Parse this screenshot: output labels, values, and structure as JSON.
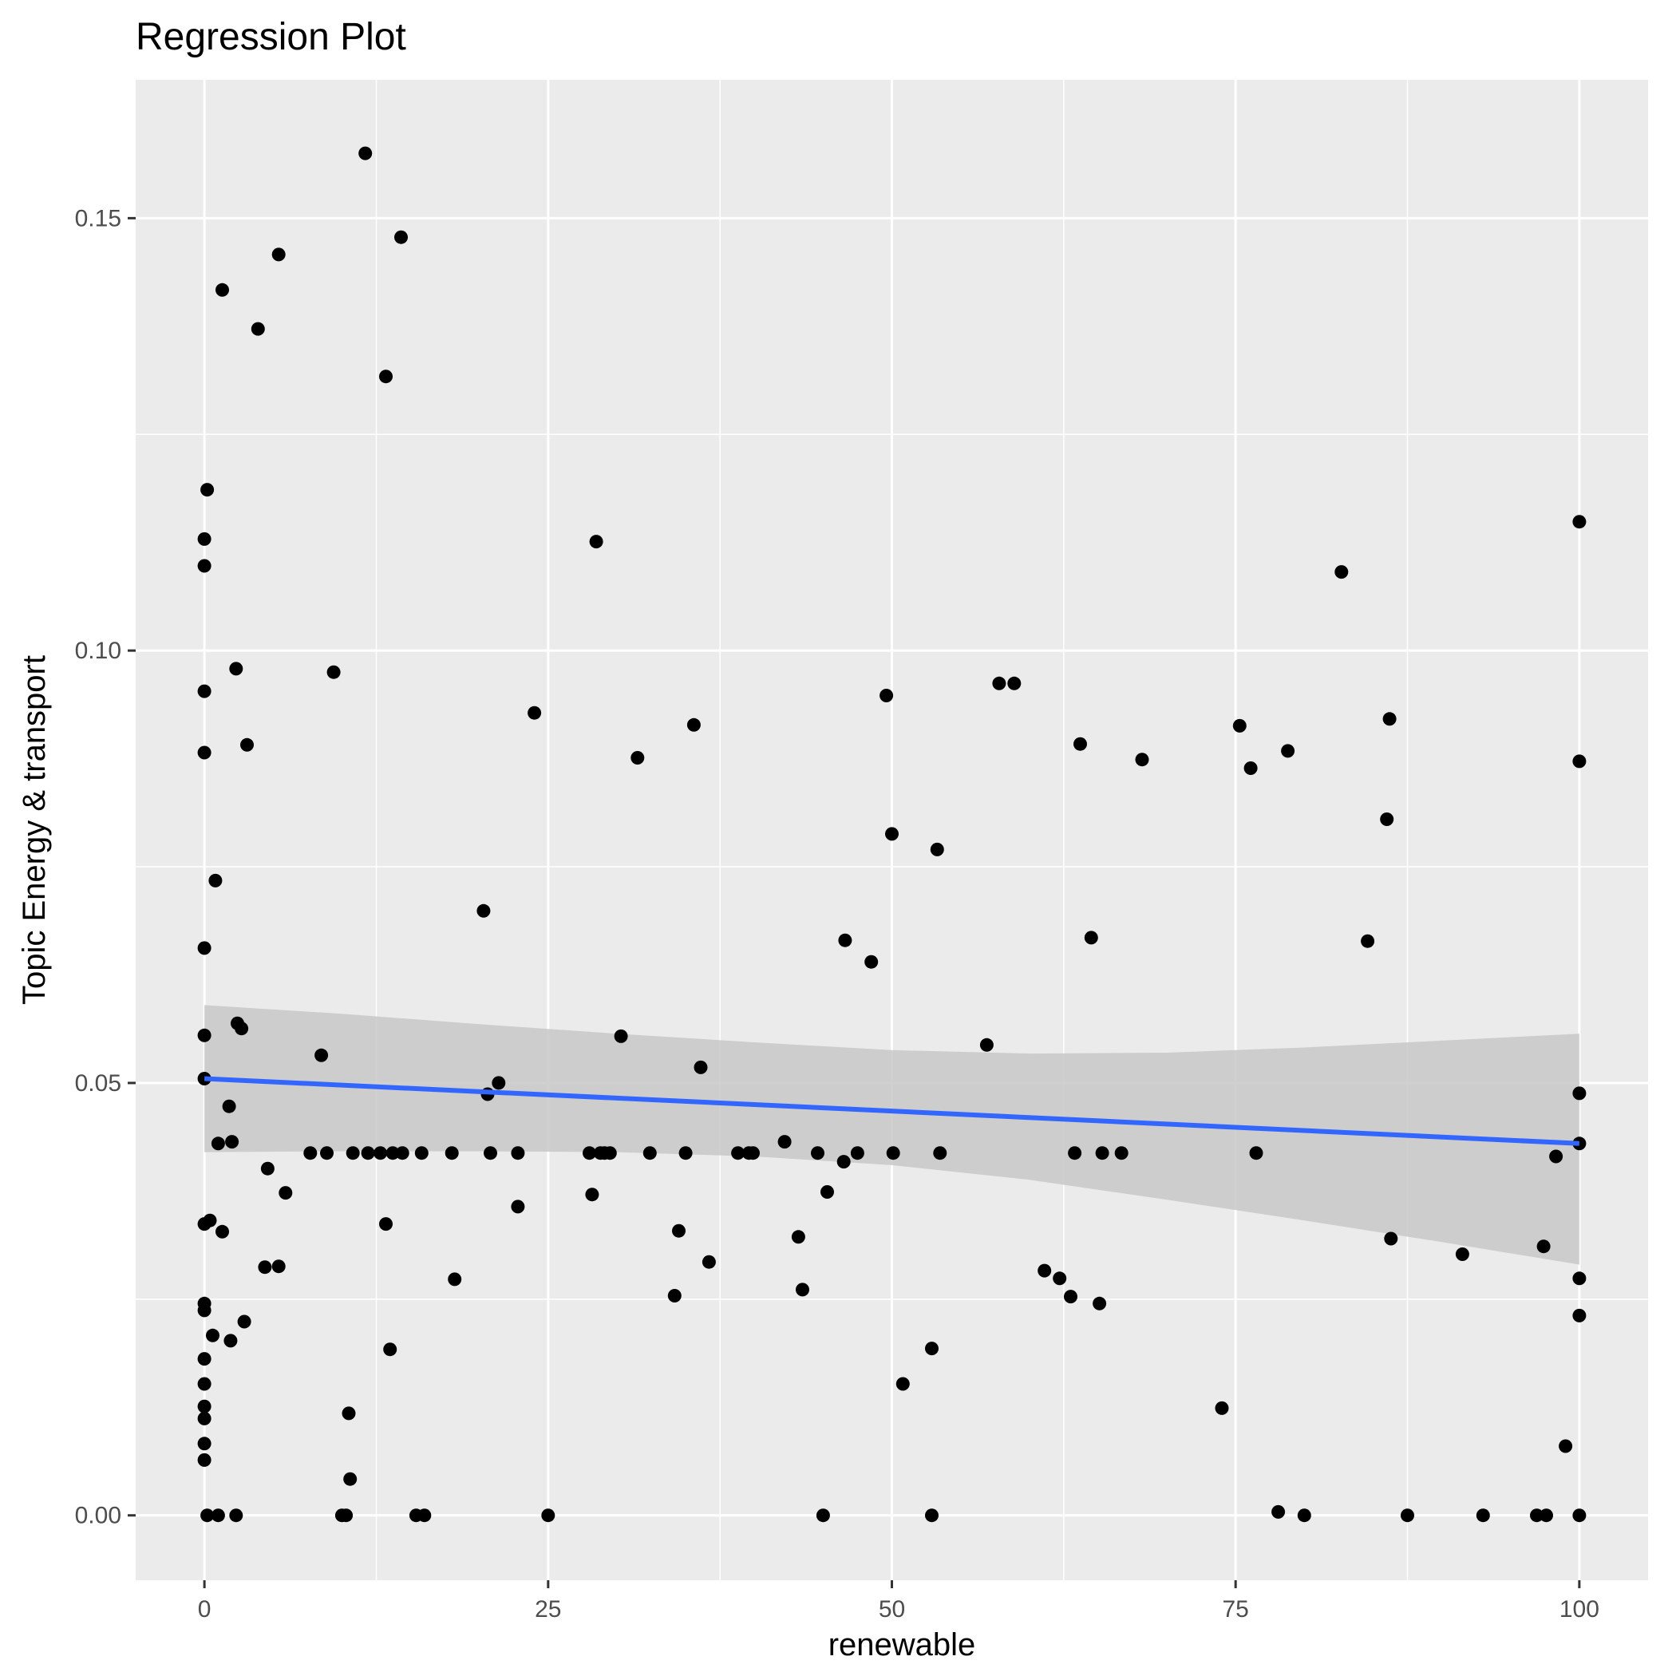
{
  "chart_data": {
    "type": "scatter",
    "title": "Regression Plot",
    "xlabel": "renewable",
    "ylabel": "Topic Energy & transport",
    "xlim": [
      -5,
      105
    ],
    "ylim": [
      -0.0075,
      0.166
    ],
    "x_ticks": [
      0,
      25,
      50,
      75,
      100
    ],
    "x_tick_labels": [
      "0",
      "25",
      "50",
      "75",
      "100"
    ],
    "y_ticks": [
      0,
      0.05,
      0.1,
      0.15
    ],
    "y_tick_labels": [
      "0.00",
      "0.05",
      "0.10",
      "0.15"
    ],
    "grid": true,
    "colors": {
      "panel_background": "#ebebeb",
      "grid": "#ffffff",
      "points": "#000000",
      "regression_line": "#3366ff",
      "confidence_band": "#c8c8c8"
    },
    "regression": {
      "x": [
        0,
        100
      ],
      "y": [
        0.0505,
        0.043
      ]
    },
    "confidence_band": {
      "x": [
        0,
        10,
        20,
        30,
        40,
        50,
        60,
        70,
        80,
        90,
        100
      ],
      "lower": [
        0.042,
        0.0421,
        0.0421,
        0.042,
        0.0415,
        0.0405,
        0.0388,
        0.0365,
        0.0341,
        0.0316,
        0.029
      ],
      "upper": [
        0.059,
        0.058,
        0.0568,
        0.0557,
        0.0547,
        0.0538,
        0.0534,
        0.0535,
        0.0541,
        0.0549,
        0.0557
      ]
    },
    "series": [
      {
        "points": [
          [
            0,
            0.1129
          ],
          [
            0,
            0.1098
          ],
          [
            0,
            0.0953
          ],
          [
            0,
            0.0882
          ],
          [
            0,
            0.0656
          ],
          [
            0,
            0.0555
          ],
          [
            0,
            0.0505
          ],
          [
            0,
            0.0337
          ],
          [
            0,
            0.0245
          ],
          [
            0,
            0.0237
          ],
          [
            0,
            0.0181
          ],
          [
            0,
            0.0152
          ],
          [
            0,
            0.0126
          ],
          [
            0,
            0.0112
          ],
          [
            0,
            0.0083
          ],
          [
            0,
            0.0064
          ],
          [
            0.2,
            0.1186
          ],
          [
            0.2,
            0.0
          ],
          [
            0.4,
            0.0341
          ],
          [
            0.6,
            0.0208
          ],
          [
            0.8,
            0.0734
          ],
          [
            1,
            0.0
          ],
          [
            1,
            0.043
          ],
          [
            1.3,
            0.1417
          ],
          [
            1.3,
            0.0328
          ],
          [
            1.8,
            0.0473
          ],
          [
            1.9,
            0.0202
          ],
          [
            2,
            0.0432
          ],
          [
            2.3,
            0.0979
          ],
          [
            2.3,
            0.0
          ],
          [
            2.4,
            0.0569
          ],
          [
            2.7,
            0.0563
          ],
          [
            2.9,
            0.0224
          ],
          [
            3.1,
            0.0891
          ],
          [
            3.9,
            0.1372
          ],
          [
            4.4,
            0.0287
          ],
          [
            4.6,
            0.0401
          ],
          [
            5.4,
            0.1458
          ],
          [
            5.4,
            0.0288
          ],
          [
            5.9,
            0.0373
          ],
          [
            7.7,
            0.0419
          ],
          [
            8.5,
            0.0532
          ],
          [
            8.9,
            0.0419
          ],
          [
            9.4,
            0.0975
          ],
          [
            10,
            0.0
          ],
          [
            10.3,
            0.0
          ],
          [
            10.5,
            0.0118
          ],
          [
            10.6,
            0.0042
          ],
          [
            10.8,
            0.0419
          ],
          [
            11.7,
            0.1575
          ],
          [
            11.9,
            0.0419
          ],
          [
            12.8,
            0.0419
          ],
          [
            13.2,
            0.1317
          ],
          [
            13.2,
            0.0337
          ],
          [
            13.5,
            0.0192
          ],
          [
            13.7,
            0.0419
          ],
          [
            14.3,
            0.1478
          ],
          [
            14.4,
            0.0419
          ],
          [
            15.4,
            0.0
          ],
          [
            15.8,
            0.0419
          ],
          [
            16,
            0.0
          ],
          [
            18,
            0.0419
          ],
          [
            18.2,
            0.0273
          ],
          [
            20.3,
            0.0699
          ],
          [
            20.6,
            0.0487
          ],
          [
            20.8,
            0.0419
          ],
          [
            21.4,
            0.05
          ],
          [
            22.8,
            0.0419
          ],
          [
            22.8,
            0.0357
          ],
          [
            24,
            0.0928
          ],
          [
            25,
            0.0
          ],
          [
            28,
            0.0419
          ],
          [
            28.2,
            0.0371
          ],
          [
            28.5,
            0.1126
          ],
          [
            28.8,
            0.0419
          ],
          [
            29.1,
            0.0419
          ],
          [
            29.5,
            0.0419
          ],
          [
            30.3,
            0.0554
          ],
          [
            31.5,
            0.0876
          ],
          [
            32.4,
            0.0419
          ],
          [
            34.2,
            0.0254
          ],
          [
            34.5,
            0.0329
          ],
          [
            35,
            0.0419
          ],
          [
            35.6,
            0.0914
          ],
          [
            36.1,
            0.0518
          ],
          [
            36.7,
            0.0293
          ],
          [
            38.8,
            0.0419
          ],
          [
            39.6,
            0.0419
          ],
          [
            39.9,
            0.0419
          ],
          [
            42.2,
            0.0432
          ],
          [
            43.2,
            0.0322
          ],
          [
            43.5,
            0.0261
          ],
          [
            44.6,
            0.0419
          ],
          [
            45,
            0.0
          ],
          [
            45.3,
            0.0374
          ],
          [
            46.5,
            0.0409
          ],
          [
            46.6,
            0.0665
          ],
          [
            47.5,
            0.0419
          ],
          [
            48.5,
            0.064
          ],
          [
            49.6,
            0.0948
          ],
          [
            50,
            0.0788
          ],
          [
            50.1,
            0.0419
          ],
          [
            50.8,
            0.0152
          ],
          [
            52.9,
            0.0193
          ],
          [
            52.9,
            0.0
          ],
          [
            53.3,
            0.077
          ],
          [
            53.5,
            0.0419
          ],
          [
            56.9,
            0.0544
          ],
          [
            57.8,
            0.0962
          ],
          [
            58.9,
            0.0962
          ],
          [
            61.1,
            0.0283
          ],
          [
            62.2,
            0.0274
          ],
          [
            63,
            0.0253
          ],
          [
            63.3,
            0.0419
          ],
          [
            63.7,
            0.0892
          ],
          [
            64.5,
            0.0668
          ],
          [
            65.1,
            0.0245
          ],
          [
            65.3,
            0.0419
          ],
          [
            66.7,
            0.0419
          ],
          [
            68.2,
            0.0874
          ],
          [
            74,
            0.0124
          ],
          [
            75.3,
            0.0913
          ],
          [
            76.1,
            0.0864
          ],
          [
            76.5,
            0.0419
          ],
          [
            78.1,
            0.0004
          ],
          [
            78.8,
            0.0884
          ],
          [
            80,
            0.0
          ],
          [
            82.7,
            0.1091
          ],
          [
            84.6,
            0.0664
          ],
          [
            86,
            0.0805
          ],
          [
            86.2,
            0.0921
          ],
          [
            86.3,
            0.032
          ],
          [
            87.5,
            0.0
          ],
          [
            91.5,
            0.0302
          ],
          [
            93,
            0.0
          ],
          [
            96.9,
            0.0
          ],
          [
            97.4,
            0.0311
          ],
          [
            97.6,
            0.0
          ],
          [
            98.3,
            0.0415
          ],
          [
            99,
            0.008
          ],
          [
            100,
            0.1149
          ],
          [
            100,
            0.0872
          ],
          [
            100,
            0.0488
          ],
          [
            100,
            0.043
          ],
          [
            100,
            0.0274
          ],
          [
            100,
            0.0231
          ],
          [
            100,
            0.0
          ]
        ]
      }
    ]
  }
}
